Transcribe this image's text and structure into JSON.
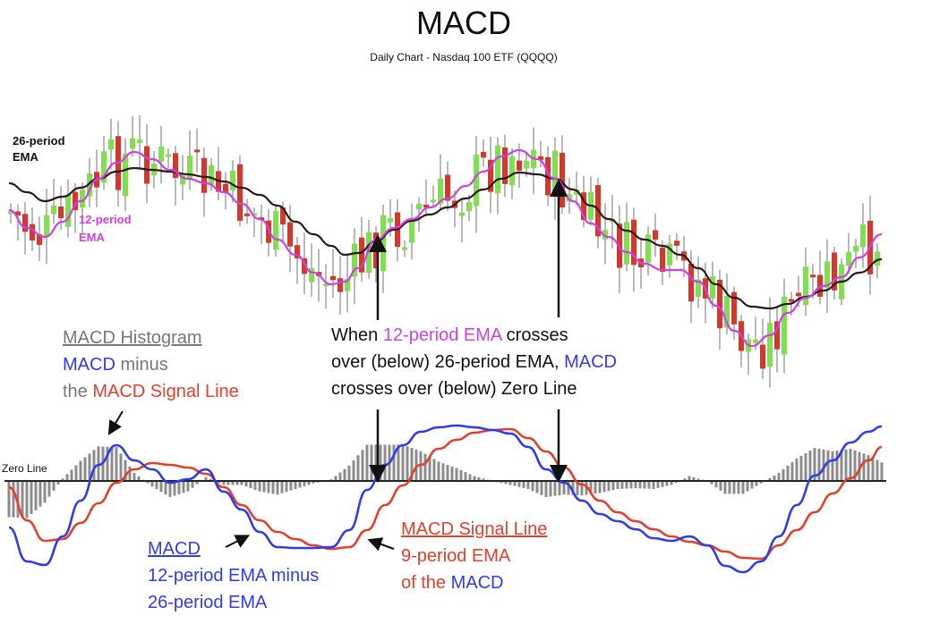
{
  "title": "MACD",
  "subtitle": "Daily Chart - Nasdaq 100 ETF (QQQQ)",
  "colors": {
    "up": "#7ee04f",
    "down": "#d9362b",
    "wick": "#8a8a8a",
    "ema12": "#d040e0",
    "ema26": "#2a1a1a",
    "macd": "#2f3de8",
    "signal": "#e0402c",
    "histogram": "#8c8c8c",
    "zero_line": "#222222",
    "annotation_gray": "#777777"
  },
  "labels": {
    "ema26": [
      "26-period",
      "EMA"
    ],
    "ema12": [
      "12-period",
      "EMA"
    ],
    "zero_line": "Zero Line",
    "hist_title": "MACD Histogram",
    "hist_l2a": "MACD",
    "hist_l2b": " minus",
    "hist_l3a": "the ",
    "hist_l3b": "MACD Signal Line",
    "cross_l1a": "When ",
    "cross_l1b": "12-period EMA",
    "cross_l1c": " crosses",
    "cross_l2a": "over (below) 26-period EMA, ",
    "cross_l2b": "MACD",
    "cross_l3": "crosses over (below) Zero Line",
    "macd_title": "MACD",
    "macd_l2": "12-period EMA minus",
    "macd_l3": "26-period EMA",
    "sig_title": "MACD Signal Line",
    "sig_l2": "9-period EMA",
    "sig_l3a": "of the ",
    "sig_l3b": "MACD"
  },
  "chart_data": {
    "type": "line",
    "price_series": [
      {
        "name": "26-period EMA",
        "values": [
          [
            10,
            205
          ],
          [
            30,
            215
          ],
          [
            50,
            225
          ],
          [
            70,
            220
          ],
          [
            90,
            210
          ],
          [
            110,
            200
          ],
          [
            130,
            192
          ],
          [
            150,
            188
          ],
          [
            170,
            190
          ],
          [
            190,
            192
          ],
          [
            210,
            195
          ],
          [
            230,
            198
          ],
          [
            250,
            203
          ],
          [
            270,
            210
          ],
          [
            290,
            218
          ],
          [
            310,
            230
          ],
          [
            330,
            248
          ],
          [
            350,
            262
          ],
          [
            370,
            275
          ],
          [
            385,
            285
          ],
          [
            400,
            283
          ],
          [
            420,
            270
          ],
          [
            440,
            257
          ],
          [
            460,
            247
          ],
          [
            480,
            240
          ],
          [
            500,
            232
          ],
          [
            520,
            222
          ],
          [
            540,
            212
          ],
          [
            560,
            200
          ],
          [
            580,
            193
          ],
          [
            600,
            195
          ],
          [
            620,
            200
          ],
          [
            640,
            212
          ],
          [
            660,
            230
          ],
          [
            680,
            245
          ],
          [
            700,
            258
          ],
          [
            720,
            268
          ],
          [
            740,
            275
          ],
          [
            760,
            285
          ],
          [
            780,
            300
          ],
          [
            800,
            318
          ],
          [
            820,
            333
          ],
          [
            840,
            343
          ],
          [
            860,
            345
          ],
          [
            880,
            340
          ],
          [
            900,
            332
          ],
          [
            920,
            325
          ],
          [
            940,
            315
          ],
          [
            960,
            305
          ],
          [
            985,
            290
          ]
        ]
      },
      {
        "name": "12-period EMA",
        "values": [
          [
            10,
            235
          ],
          [
            30,
            255
          ],
          [
            50,
            265
          ],
          [
            70,
            248
          ],
          [
            90,
            225
          ],
          [
            110,
            200
          ],
          [
            130,
            182
          ],
          [
            150,
            170
          ],
          [
            170,
            178
          ],
          [
            190,
            190
          ],
          [
            210,
            200
          ],
          [
            230,
            205
          ],
          [
            250,
            215
          ],
          [
            270,
            228
          ],
          [
            290,
            245
          ],
          [
            310,
            268
          ],
          [
            330,
            285
          ],
          [
            350,
            305
          ],
          [
            370,
            318
          ],
          [
            385,
            315
          ],
          [
            400,
            300
          ],
          [
            420,
            268
          ],
          [
            440,
            255
          ],
          [
            460,
            245
          ],
          [
            480,
            232
          ],
          [
            500,
            222
          ],
          [
            520,
            208
          ],
          [
            540,
            192
          ],
          [
            560,
            175
          ],
          [
            580,
            168
          ],
          [
            600,
            178
          ],
          [
            620,
            200
          ],
          [
            640,
            225
          ],
          [
            660,
            250
          ],
          [
            680,
            265
          ],
          [
            700,
            282
          ],
          [
            720,
            295
          ],
          [
            740,
            302
          ],
          [
            760,
            302
          ],
          [
            780,
            315
          ],
          [
            800,
            342
          ],
          [
            820,
            370
          ],
          [
            840,
            387
          ],
          [
            860,
            375
          ],
          [
            880,
            350
          ],
          [
            900,
            333
          ],
          [
            920,
            320
          ],
          [
            940,
            310
          ],
          [
            960,
            288
          ],
          [
            985,
            262
          ]
        ]
      }
    ],
    "histogram_range": [
      10,
      985
    ],
    "macd": [
      [
        10,
        590
      ],
      [
        30,
        628
      ],
      [
        50,
        632
      ],
      [
        70,
        600
      ],
      [
        90,
        560
      ],
      [
        110,
        520
      ],
      [
        130,
        498
      ],
      [
        150,
        515
      ],
      [
        170,
        525
      ],
      [
        190,
        540
      ],
      [
        210,
        536
      ],
      [
        230,
        525
      ],
      [
        250,
        550
      ],
      [
        270,
        570
      ],
      [
        290,
        595
      ],
      [
        310,
        612
      ],
      [
        330,
        613
      ],
      [
        350,
        613
      ],
      [
        370,
        612
      ],
      [
        390,
        593
      ],
      [
        410,
        548
      ],
      [
        430,
        520
      ],
      [
        450,
        498
      ],
      [
        470,
        483
      ],
      [
        490,
        478
      ],
      [
        510,
        476
      ],
      [
        530,
        478
      ],
      [
        550,
        481
      ],
      [
        570,
        485
      ],
      [
        590,
        500
      ],
      [
        610,
        525
      ],
      [
        630,
        540
      ],
      [
        650,
        560
      ],
      [
        670,
        575
      ],
      [
        690,
        583
      ],
      [
        710,
        592
      ],
      [
        730,
        602
      ],
      [
        750,
        605
      ],
      [
        770,
        600
      ],
      [
        790,
        610
      ],
      [
        810,
        633
      ],
      [
        830,
        640
      ],
      [
        850,
        628
      ],
      [
        870,
        600
      ],
      [
        890,
        565
      ],
      [
        910,
        532
      ],
      [
        930,
        515
      ],
      [
        950,
        495
      ],
      [
        970,
        483
      ],
      [
        985,
        477
      ]
    ],
    "signal": [
      [
        10,
        545
      ],
      [
        30,
        582
      ],
      [
        50,
        605
      ],
      [
        70,
        603
      ],
      [
        90,
        585
      ],
      [
        110,
        563
      ],
      [
        130,
        540
      ],
      [
        150,
        525
      ],
      [
        170,
        518
      ],
      [
        190,
        520
      ],
      [
        210,
        523
      ],
      [
        230,
        530
      ],
      [
        250,
        545
      ],
      [
        270,
        565
      ],
      [
        290,
        582
      ],
      [
        310,
        595
      ],
      [
        330,
        603
      ],
      [
        350,
        610
      ],
      [
        370,
        614
      ],
      [
        390,
        612
      ],
      [
        410,
        593
      ],
      [
        430,
        565
      ],
      [
        450,
        543
      ],
      [
        470,
        520
      ],
      [
        490,
        502
      ],
      [
        510,
        492
      ],
      [
        530,
        484
      ],
      [
        550,
        481
      ],
      [
        570,
        480
      ],
      [
        590,
        490
      ],
      [
        610,
        505
      ],
      [
        630,
        523
      ],
      [
        650,
        542
      ],
      [
        670,
        560
      ],
      [
        690,
        573
      ],
      [
        710,
        583
      ],
      [
        730,
        592
      ],
      [
        750,
        600
      ],
      [
        770,
        606
      ],
      [
        790,
        610
      ],
      [
        810,
        617
      ],
      [
        830,
        624
      ],
      [
        850,
        625
      ],
      [
        870,
        610
      ],
      [
        890,
        593
      ],
      [
        910,
        573
      ],
      [
        930,
        552
      ],
      [
        950,
        535
      ],
      [
        970,
        515
      ],
      [
        985,
        500
      ]
    ],
    "zero_line": 0
  }
}
